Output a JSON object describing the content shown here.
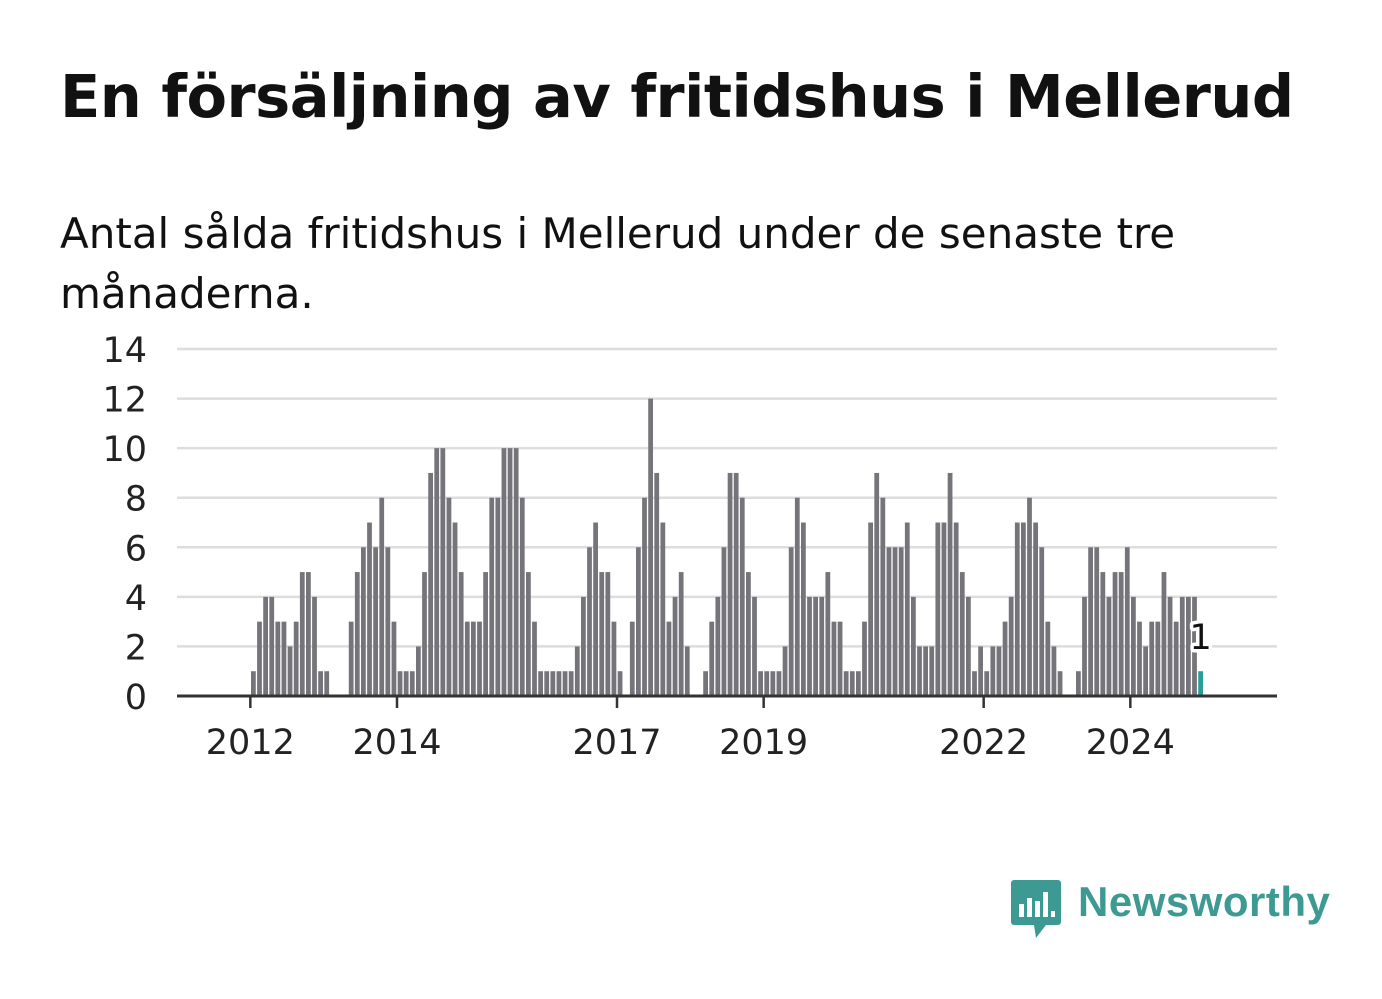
{
  "title": "En försäljning av fritidshus i Mellerud",
  "subtitle": "Antal sålda fritidshus i Mellerud under de senaste tre månaderna.",
  "brand": {
    "name": "Newsworthy",
    "color": "#3d9a93",
    "icon": "newsworthy-logo-icon"
  },
  "colors": {
    "bar": "#74747a",
    "highlight": "#2a9d96",
    "grid": "#dddddd",
    "axis": "#333333"
  },
  "chart_data": {
    "type": "bar",
    "title": "En försäljning av fritidshus i Mellerud",
    "subtitle": "Antal sålda fritidshus i Mellerud under de senaste tre månaderna.",
    "xlabel": "",
    "ylabel": "",
    "ylim": [
      0,
      14
    ],
    "yticks": [
      0,
      2,
      4,
      6,
      8,
      10,
      12,
      14
    ],
    "x_start": "2011-01",
    "x_end": "2025-12",
    "xticks": [
      {
        "label": "2012",
        "month": "2012-01"
      },
      {
        "label": "2014",
        "month": "2014-01"
      },
      {
        "label": "2017",
        "month": "2017-01"
      },
      {
        "label": "2019",
        "month": "2019-01"
      },
      {
        "label": "2022",
        "month": "2022-01"
      },
      {
        "label": "2024",
        "month": "2024-01"
      }
    ],
    "grid": true,
    "legend": "none",
    "series": [
      {
        "values": [
          [
            "2012-01",
            1
          ],
          [
            "2012-02",
            3
          ],
          [
            "2012-03",
            4
          ],
          [
            "2012-04",
            4
          ],
          [
            "2012-05",
            3
          ],
          [
            "2012-06",
            3
          ],
          [
            "2012-07",
            2
          ],
          [
            "2012-08",
            3
          ],
          [
            "2012-09",
            5
          ],
          [
            "2012-10",
            5
          ],
          [
            "2012-11",
            4
          ],
          [
            "2012-12",
            1
          ],
          [
            "2013-01",
            1
          ],
          [
            "2013-05",
            3
          ],
          [
            "2013-06",
            5
          ],
          [
            "2013-07",
            6
          ],
          [
            "2013-08",
            7
          ],
          [
            "2013-09",
            6
          ],
          [
            "2013-10",
            8
          ],
          [
            "2013-11",
            6
          ],
          [
            "2013-12",
            3
          ],
          [
            "2014-01",
            1
          ],
          [
            "2014-02",
            1
          ],
          [
            "2014-03",
            1
          ],
          [
            "2014-04",
            2
          ],
          [
            "2014-05",
            5
          ],
          [
            "2014-06",
            9
          ],
          [
            "2014-07",
            10
          ],
          [
            "2014-08",
            10
          ],
          [
            "2014-09",
            8
          ],
          [
            "2014-10",
            7
          ],
          [
            "2014-11",
            5
          ],
          [
            "2014-12",
            3
          ],
          [
            "2015-01",
            3
          ],
          [
            "2015-02",
            3
          ],
          [
            "2015-03",
            5
          ],
          [
            "2015-04",
            8
          ],
          [
            "2015-05",
            8
          ],
          [
            "2015-06",
            10
          ],
          [
            "2015-07",
            10
          ],
          [
            "2015-08",
            10
          ],
          [
            "2015-09",
            8
          ],
          [
            "2015-10",
            5
          ],
          [
            "2015-11",
            3
          ],
          [
            "2015-12",
            1
          ],
          [
            "2016-01",
            1
          ],
          [
            "2016-02",
            1
          ],
          [
            "2016-03",
            1
          ],
          [
            "2016-04",
            1
          ],
          [
            "2016-05",
            1
          ],
          [
            "2016-06",
            2
          ],
          [
            "2016-07",
            4
          ],
          [
            "2016-08",
            6
          ],
          [
            "2016-09",
            7
          ],
          [
            "2016-10",
            5
          ],
          [
            "2016-11",
            5
          ],
          [
            "2016-12",
            3
          ],
          [
            "2017-01",
            1
          ],
          [
            "2017-03",
            3
          ],
          [
            "2017-04",
            6
          ],
          [
            "2017-05",
            8
          ],
          [
            "2017-06",
            12
          ],
          [
            "2017-07",
            9
          ],
          [
            "2017-08",
            7
          ],
          [
            "2017-09",
            3
          ],
          [
            "2017-10",
            4
          ],
          [
            "2017-11",
            5
          ],
          [
            "2017-12",
            2
          ],
          [
            "2018-03",
            1
          ],
          [
            "2018-04",
            3
          ],
          [
            "2018-05",
            4
          ],
          [
            "2018-06",
            6
          ],
          [
            "2018-07",
            9
          ],
          [
            "2018-08",
            9
          ],
          [
            "2018-09",
            8
          ],
          [
            "2018-10",
            5
          ],
          [
            "2018-11",
            4
          ],
          [
            "2018-12",
            1
          ],
          [
            "2019-01",
            1
          ],
          [
            "2019-02",
            1
          ],
          [
            "2019-03",
            1
          ],
          [
            "2019-04",
            2
          ],
          [
            "2019-05",
            6
          ],
          [
            "2019-06",
            8
          ],
          [
            "2019-07",
            7
          ],
          [
            "2019-08",
            4
          ],
          [
            "2019-09",
            4
          ],
          [
            "2019-10",
            4
          ],
          [
            "2019-11",
            5
          ],
          [
            "2019-12",
            3
          ],
          [
            "2020-01",
            3
          ],
          [
            "2020-02",
            1
          ],
          [
            "2020-03",
            1
          ],
          [
            "2020-04",
            1
          ],
          [
            "2020-05",
            3
          ],
          [
            "2020-06",
            7
          ],
          [
            "2020-07",
            9
          ],
          [
            "2020-08",
            8
          ],
          [
            "2020-09",
            6
          ],
          [
            "2020-10",
            6
          ],
          [
            "2020-11",
            6
          ],
          [
            "2020-12",
            7
          ],
          [
            "2021-01",
            4
          ],
          [
            "2021-02",
            2
          ],
          [
            "2021-03",
            2
          ],
          [
            "2021-04",
            2
          ],
          [
            "2021-05",
            7
          ],
          [
            "2021-06",
            7
          ],
          [
            "2021-07",
            9
          ],
          [
            "2021-08",
            7
          ],
          [
            "2021-09",
            5
          ],
          [
            "2021-10",
            4
          ],
          [
            "2021-11",
            1
          ],
          [
            "2021-12",
            2
          ],
          [
            "2022-01",
            1
          ],
          [
            "2022-02",
            2
          ],
          [
            "2022-03",
            2
          ],
          [
            "2022-04",
            3
          ],
          [
            "2022-05",
            4
          ],
          [
            "2022-06",
            7
          ],
          [
            "2022-07",
            7
          ],
          [
            "2022-08",
            8
          ],
          [
            "2022-09",
            7
          ],
          [
            "2022-10",
            6
          ],
          [
            "2022-11",
            3
          ],
          [
            "2022-12",
            2
          ],
          [
            "2023-01",
            1
          ],
          [
            "2023-04",
            1
          ],
          [
            "2023-05",
            4
          ],
          [
            "2023-06",
            6
          ],
          [
            "2023-07",
            6
          ],
          [
            "2023-08",
            5
          ],
          [
            "2023-09",
            4
          ],
          [
            "2023-10",
            5
          ],
          [
            "2023-11",
            5
          ],
          [
            "2023-12",
            6
          ],
          [
            "2024-01",
            4
          ],
          [
            "2024-02",
            3
          ],
          [
            "2024-03",
            2
          ],
          [
            "2024-04",
            3
          ],
          [
            "2024-05",
            3
          ],
          [
            "2024-06",
            5
          ],
          [
            "2024-07",
            4
          ],
          [
            "2024-08",
            3
          ],
          [
            "2024-09",
            4
          ],
          [
            "2024-10",
            4
          ],
          [
            "2024-11",
            4
          ],
          [
            "2024-12",
            1
          ]
        ]
      }
    ],
    "highlight": {
      "month": "2024-12",
      "value": 1,
      "label": "1",
      "color": "#2a9d96"
    }
  }
}
